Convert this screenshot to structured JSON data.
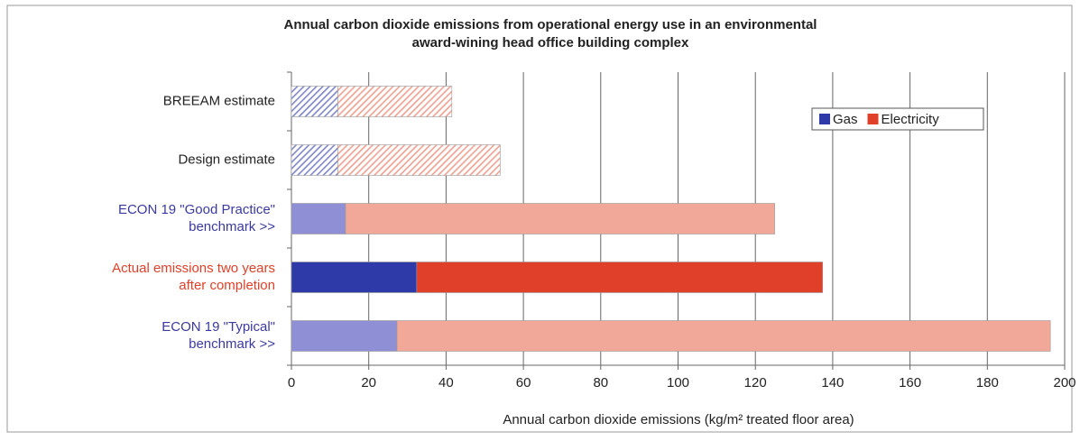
{
  "chart_data": {
    "type": "stacked-hbar",
    "title": [
      "Annual carbon dioxide emissions from operational energy use in an environmental",
      "award-wining head office building complex"
    ],
    "categories": [
      "BREEAM estimate",
      "Design estimate",
      "ECON 19 \"Good Practice\"\nbenchmark >>",
      "Actual emissions two years\nafter completion",
      "ECON 19 \"Typical\"\nbenchmark  >>"
    ],
    "category_label_colors": [
      "#222222",
      "#222222",
      "#3a3aa0",
      "#e0402a",
      "#3a3aa0"
    ],
    "hatched": [
      true,
      true,
      false,
      false,
      false
    ],
    "series": [
      {
        "name": "Gas",
        "color": "#2e3aa8",
        "bar_colors": [
          "#7f86c8",
          "#7f86c8",
          "#8f8fd6",
          "#2e3aa8",
          "#8f8fd6"
        ],
        "values": [
          12,
          12,
          14,
          32.4,
          27.3
        ]
      },
      {
        "name": "Electricity",
        "color": "#e0402a",
        "bar_colors": [
          "#f0a090",
          "#f0a090",
          "#f2a898",
          "#e0402a",
          "#f2a898"
        ],
        "values": [
          29.5,
          42,
          111,
          105,
          169
        ]
      }
    ],
    "xlabel": "Annual carbon dioxide emissions (kg/m² treated floor area)",
    "xlim": [
      0,
      200
    ],
    "xticks": [
      0,
      20,
      40,
      60,
      80,
      100,
      120,
      140,
      160,
      180,
      200
    ],
    "grid": true,
    "legend": "upper-right"
  }
}
